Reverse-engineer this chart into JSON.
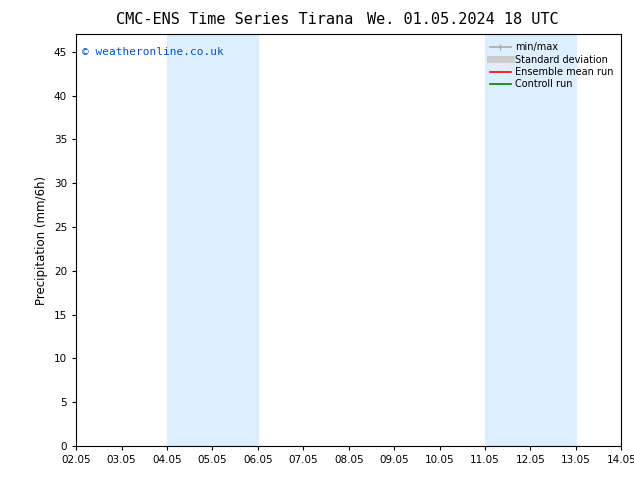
{
  "title": "CMC-ENS Time Series Tirana",
  "title2": "We. 01.05.2024 18 UTC",
  "ylabel": "Precipitation (mm/6h)",
  "xlabel_ticks": [
    "02.05",
    "03.05",
    "04.05",
    "05.05",
    "06.05",
    "07.05",
    "08.05",
    "09.05",
    "10.05",
    "11.05",
    "12.05",
    "13.05",
    "14.05"
  ],
  "xlim": [
    0,
    12
  ],
  "ylim": [
    0,
    47
  ],
  "yticks": [
    0,
    5,
    10,
    15,
    20,
    25,
    30,
    35,
    40,
    45
  ],
  "shaded_bands": [
    {
      "xmin": 2.0,
      "xmax": 4.0
    },
    {
      "xmin": 9.0,
      "xmax": 11.0
    }
  ],
  "shade_color": "#ddeeff",
  "background_color": "#ffffff",
  "watermark": "© weatheronline.co.uk",
  "watermark_color": "#0055cc",
  "legend_entries": [
    {
      "label": "min/max",
      "color": "#aaaaaa",
      "lw": 1.2
    },
    {
      "label": "Standard deviation",
      "color": "#cccccc",
      "lw": 5
    },
    {
      "label": "Ensemble mean run",
      "color": "#ff0000",
      "lw": 1.2
    },
    {
      "label": "Controll run",
      "color": "#008000",
      "lw": 1.2
    }
  ],
  "tick_fontsize": 7.5,
  "label_fontsize": 8.5,
  "title_fontsize": 11,
  "watermark_fontsize": 8
}
